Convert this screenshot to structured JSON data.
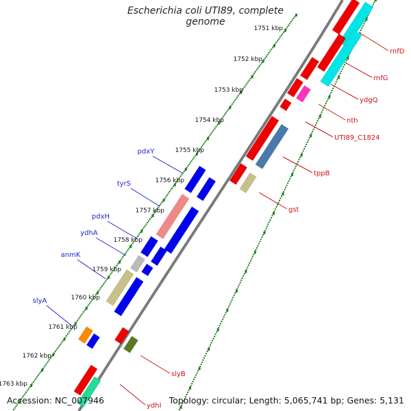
{
  "title": "Escherichia coli UTI89, complete genome",
  "accession": "Accession: NC_007946",
  "summary": "Topology: circular; Length: 5,065,741 bp; Genes: 5,131",
  "scale_labels": [
    "1751 kbp",
    "1752 kbp",
    "1753 kbp",
    "1754 kbp",
    "1755 kbp",
    "1756 kbp",
    "1757 kbp",
    "1758 kbp",
    "1759 kbp",
    "1760 kbp",
    "1761 kbp",
    "1762 kbp",
    "1763 kbp"
  ],
  "left_gene_labels": [
    "pdxY",
    "tyrS",
    "pdxH",
    "ydhA",
    "anmK",
    "slyA"
  ],
  "right_gene_labels": [
    "rnfD",
    "rnfG",
    "ydgQ",
    "nth",
    "UTI89_C1824",
    "tppB",
    "gst",
    "slyB",
    "ydhI"
  ],
  "colors": {
    "backbone": "#7a7a7a",
    "ticks": "#1a7a1a",
    "left_label": "#2222cc",
    "right_label": "#cc1111",
    "red_gene": "#ee0000",
    "blue_gene": "#0000ee",
    "cyan_gene": "#00e5e5",
    "magenta_gene": "#ff33bb",
    "steelblue_gene": "#4a7aaa",
    "khaki_gene": "#c8c08a",
    "salmon_gene": "#f08888",
    "gray_gene": "#bbbbbb",
    "orange_gene": "#ff8800",
    "olive_gene": "#5a7a22",
    "mint_gene": "#22dd99"
  }
}
